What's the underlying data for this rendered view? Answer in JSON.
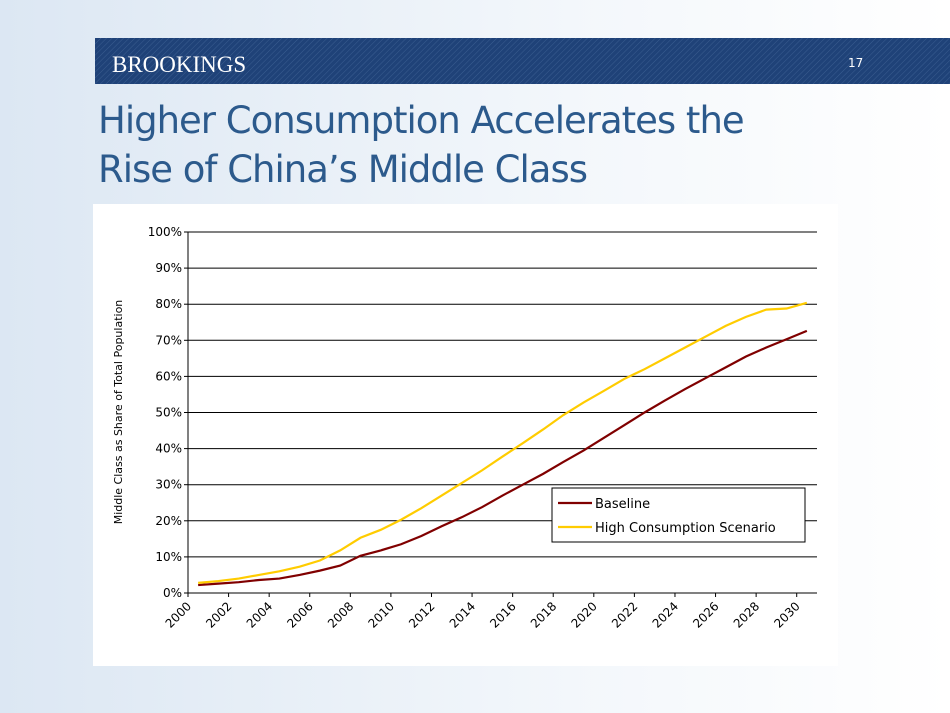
{
  "header": {
    "logo": "BROOKINGS",
    "page_number": "17"
  },
  "title": "Higher Consumption Accelerates the Rise of China’s Middle Class",
  "chart_data": {
    "type": "line",
    "y_axis_label": "Middle Class as Share of Total Population",
    "categories": [
      "2000",
      null,
      "2002",
      null,
      "2004",
      null,
      "2006",
      null,
      "2008",
      null,
      "2010",
      null,
      "2012",
      null,
      "2014",
      null,
      "2016",
      null,
      "2018",
      null,
      "2020",
      null,
      "2022",
      null,
      "2024",
      null,
      "2026",
      null,
      "2028",
      null,
      "2030"
    ],
    "series": [
      {
        "name": "Baseline",
        "color": "#800000",
        "values": [
          2.2,
          2.6,
          3.0,
          3.6,
          4.0,
          5.0,
          6.2,
          7.6,
          10.3,
          11.8,
          13.5,
          15.8,
          18.5,
          21.0,
          23.8,
          27.0,
          30.0,
          33.0,
          36.3,
          39.5,
          43.0,
          46.5,
          50.0,
          53.3,
          56.5,
          59.5,
          62.5,
          65.5,
          68.0,
          70.3,
          72.6
        ]
      },
      {
        "name": "High Consumption Scenario",
        "color": "#ffcc00",
        "values": [
          2.8,
          3.3,
          4.0,
          5.0,
          6.0,
          7.3,
          9.0,
          11.8,
          15.3,
          17.5,
          20.3,
          23.5,
          27.0,
          30.5,
          34.0,
          37.8,
          41.5,
          45.3,
          49.3,
          52.8,
          56.0,
          59.3,
          62.0,
          65.0,
          68.0,
          71.0,
          74.0,
          76.5,
          78.5,
          78.8,
          80.4
        ]
      }
    ],
    "ylim": [
      0,
      100
    ],
    "yticks": [
      {
        "value": 0,
        "label": "0%"
      },
      {
        "value": 10,
        "label": "10%"
      },
      {
        "value": 20,
        "label": "20%"
      },
      {
        "value": 30,
        "label": "30%"
      },
      {
        "value": 40,
        "label": "40%"
      },
      {
        "value": 50,
        "label": "50%"
      },
      {
        "value": 60,
        "label": "60%"
      },
      {
        "value": 70,
        "label": "70%"
      },
      {
        "value": 80,
        "label": "80%"
      },
      {
        "value": 90,
        "label": "90%"
      },
      {
        "value": 100,
        "label": "100%"
      }
    ],
    "grid": true,
    "legend": "lower-right"
  }
}
